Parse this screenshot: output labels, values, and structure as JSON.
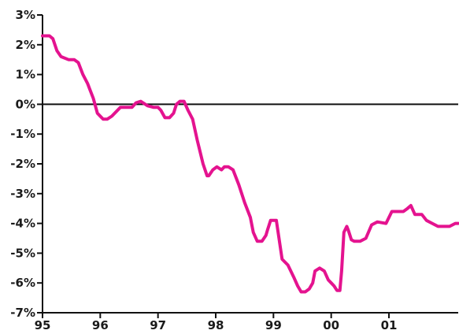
{
  "chart_data": {
    "type": "line",
    "title": "",
    "xlabel": "",
    "ylabel": "",
    "x_tick_labels": [
      "95",
      "96",
      "97",
      "98",
      "99",
      "00",
      "01"
    ],
    "x_ticks": [
      1995,
      1996,
      1997,
      1998,
      1999,
      2000,
      2001
    ],
    "xlim": [
      1995,
      2002.2
    ],
    "y_tick_labels": [
      "3%",
      "2%",
      "1%",
      "0%",
      "-1%",
      "-2%",
      "-3%",
      "-4%",
      "-5%",
      "-6%",
      "-7%"
    ],
    "y_ticks": [
      3,
      2,
      1,
      0,
      -1,
      -2,
      -3,
      -4,
      -5,
      -6,
      -7
    ],
    "ylim": [
      -7,
      3
    ],
    "grid": false,
    "reference_line": 0,
    "colors": {
      "series": "#e4138f",
      "axis": "#111111"
    },
    "series": [
      {
        "color": "#e4138f",
        "x": [
          1995.0,
          1995.12,
          1995.18,
          1995.25,
          1995.32,
          1995.45,
          1995.55,
          1995.62,
          1995.7,
          1995.78,
          1995.82,
          1995.88,
          1995.95,
          1996.05,
          1996.12,
          1996.2,
          1996.35,
          1996.45,
          1996.55,
          1996.62,
          1996.7,
          1996.82,
          1996.92,
          1997.0,
          1997.05,
          1997.12,
          1997.2,
          1997.27,
          1997.32,
          1997.38,
          1997.45,
          1997.52,
          1997.6,
          1997.68,
          1997.78,
          1997.85,
          1997.88,
          1997.95,
          1998.02,
          1998.1,
          1998.15,
          1998.22,
          1998.3,
          1998.4,
          1998.5,
          1998.6,
          1998.65,
          1998.72,
          1998.8,
          1998.87,
          1998.9,
          1998.95,
          1999.05,
          1999.15,
          1999.25,
          1999.35,
          1999.42,
          1999.48,
          1999.55,
          1999.62,
          1999.68,
          1999.72,
          1999.8,
          1999.88,
          1999.95,
          2000.0,
          2000.05,
          2000.1,
          2000.15,
          2000.18,
          2000.22,
          2000.27,
          2000.3,
          2000.35,
          2000.4,
          2000.5,
          2000.6,
          2000.7,
          2000.8,
          2000.95,
          2001.05,
          2001.15,
          2001.25,
          2001.32,
          2001.38,
          2001.45,
          2001.5,
          2001.57,
          2001.65,
          2001.75,
          2001.85,
          2001.95,
          2002.05,
          2002.15,
          2002.2
        ],
        "y": [
          2.3,
          2.3,
          2.2,
          1.8,
          1.6,
          1.5,
          1.5,
          1.4,
          1.0,
          0.7,
          0.5,
          0.2,
          -0.3,
          -0.5,
          -0.5,
          -0.4,
          -0.1,
          -0.1,
          -0.1,
          0.05,
          0.1,
          -0.05,
          -0.1,
          -0.1,
          -0.2,
          -0.45,
          -0.45,
          -0.3,
          0.0,
          0.1,
          0.1,
          -0.2,
          -0.5,
          -1.2,
          -2.0,
          -2.4,
          -2.4,
          -2.2,
          -2.1,
          -2.2,
          -2.1,
          -2.1,
          -2.2,
          -2.7,
          -3.3,
          -3.8,
          -4.3,
          -4.6,
          -4.6,
          -4.4,
          -4.2,
          -3.9,
          -3.9,
          -5.2,
          -5.4,
          -5.8,
          -6.1,
          -6.3,
          -6.3,
          -6.2,
          -6.0,
          -5.6,
          -5.5,
          -5.6,
          -5.9,
          -6.0,
          -6.1,
          -6.25,
          -6.25,
          -5.6,
          -4.3,
          -4.1,
          -4.25,
          -4.55,
          -4.6,
          -4.6,
          -4.5,
          -4.05,
          -3.95,
          -4.0,
          -3.6,
          -3.6,
          -3.6,
          -3.5,
          -3.4,
          -3.7,
          -3.7,
          -3.7,
          -3.9,
          -4.0,
          -4.1,
          -4.1,
          -4.1,
          -4.0,
          -4.0
        ]
      }
    ]
  }
}
